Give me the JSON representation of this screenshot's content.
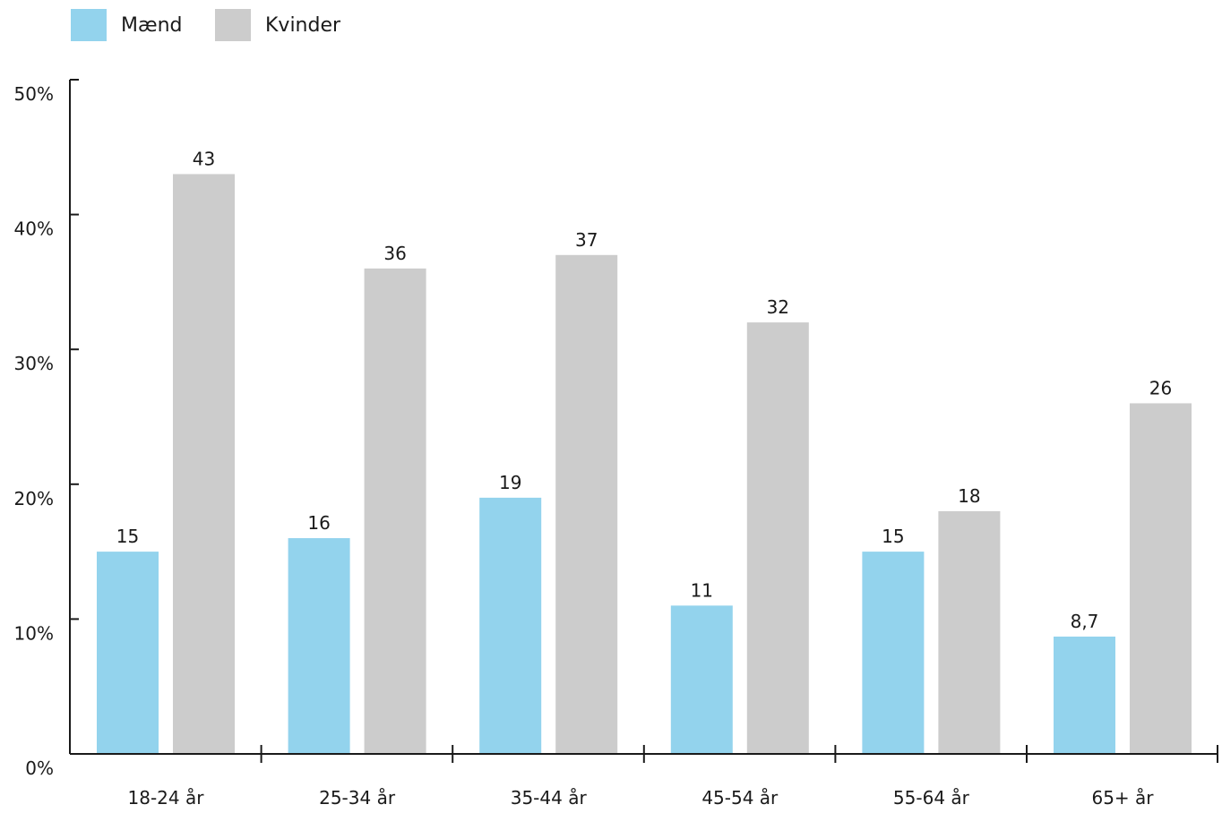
{
  "chart_data": {
    "type": "bar",
    "categories": [
      "18-24 år",
      "25-34 år",
      "35-44 år",
      "45-54 år",
      "55-64 år",
      "65+ år"
    ],
    "series": [
      {
        "name": "Mænd",
        "color": "#93d3ed",
        "values": [
          15,
          16,
          19,
          11,
          15,
          8.7
        ],
        "labels": [
          "15",
          "16",
          "19",
          "11",
          "15",
          "8,7"
        ]
      },
      {
        "name": "Kvinder",
        "color": "#cccccc",
        "values": [
          43,
          36,
          37,
          32,
          18,
          26
        ],
        "labels": [
          "43",
          "36",
          "37",
          "32",
          "18",
          "26"
        ]
      }
    ],
    "yticks": [
      0,
      10,
      20,
      30,
      40,
      50
    ],
    "ytick_labels": [
      "0%",
      "10%",
      "20%",
      "30%",
      "40%",
      "50%"
    ],
    "ylim": [
      0,
      50
    ],
    "grid": false,
    "legend_position": "top-left"
  }
}
